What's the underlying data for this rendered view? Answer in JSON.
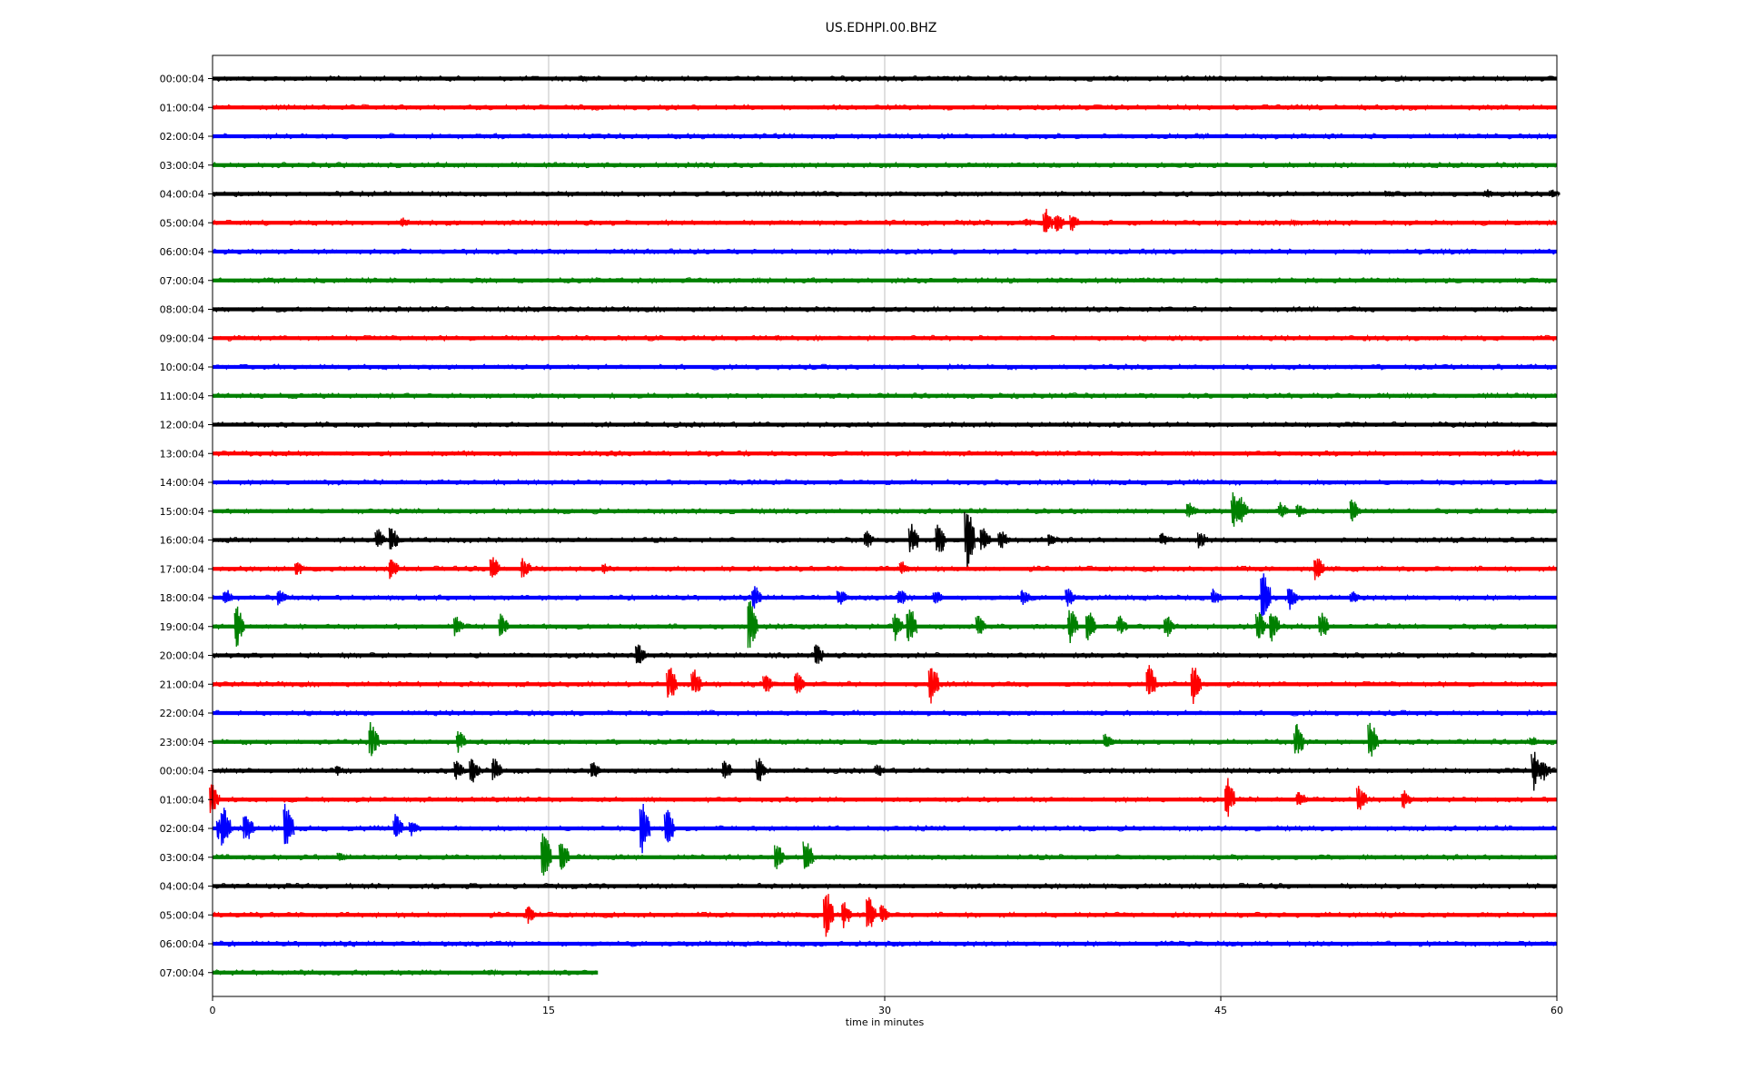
{
  "chart_data": {
    "type": "line",
    "title": "US.EDHPI.00.BHZ",
    "xlabel": "time in minutes",
    "ylabel": "",
    "xlim": [
      0,
      60
    ],
    "x_ticks": [
      0,
      15,
      30,
      45,
      60
    ],
    "grid": "vertical",
    "line_colors": [
      "#000000",
      "#ff0000",
      "#0000ff",
      "#008000"
    ],
    "rows": [
      {
        "label": "00:00:04",
        "end": 60,
        "events": [
          [
            16.6,
            4
          ]
        ]
      },
      {
        "label": "01:00:04",
        "end": 60,
        "events": []
      },
      {
        "label": "02:00:04",
        "end": 60,
        "events": [
          [
            44.3,
            3
          ]
        ]
      },
      {
        "label": "03:00:04",
        "end": 60,
        "events": []
      },
      {
        "label": "04:00:04",
        "end": 60,
        "events": [
          [
            52.5,
            4
          ],
          [
            57,
            5
          ],
          [
            59.9,
            5
          ]
        ]
      },
      {
        "label": "05:00:04",
        "end": 60,
        "events": [
          [
            8.6,
            6
          ],
          [
            36.5,
            5
          ],
          [
            37.3,
            16
          ],
          [
            37.8,
            12
          ],
          [
            38.5,
            10
          ],
          [
            48.3,
            3
          ]
        ]
      },
      {
        "label": "06:00:04",
        "end": 60,
        "events": []
      },
      {
        "label": "07:00:04",
        "end": 60,
        "events": [
          [
            24.3,
            3
          ]
        ]
      },
      {
        "label": "08:00:04",
        "end": 60,
        "events": []
      },
      {
        "label": "09:00:04",
        "end": 60,
        "events": [
          [
            25.3,
            3
          ]
        ]
      },
      {
        "label": "10:00:04",
        "end": 60,
        "events": []
      },
      {
        "label": "11:00:04",
        "end": 60,
        "events": []
      },
      {
        "label": "12:00:04",
        "end": 60,
        "events": []
      },
      {
        "label": "13:00:04",
        "end": 60,
        "events": [
          [
            58.2,
            4
          ]
        ]
      },
      {
        "label": "14:00:04",
        "end": 60,
        "events": []
      },
      {
        "label": "15:00:04",
        "end": 60,
        "events": [
          [
            43.7,
            10
          ],
          [
            45.7,
            22
          ],
          [
            46,
            16
          ],
          [
            47.8,
            10
          ],
          [
            48.6,
            8
          ],
          [
            51,
            14
          ]
        ]
      },
      {
        "label": "16:00:04",
        "end": 60,
        "events": [
          [
            7.5,
            12
          ],
          [
            8.1,
            16
          ],
          [
            29.3,
            10
          ],
          [
            31.3,
            18
          ],
          [
            32.5,
            20
          ],
          [
            33.8,
            36
          ],
          [
            34.5,
            14
          ],
          [
            35.3,
            12
          ],
          [
            37.5,
            8
          ],
          [
            42.5,
            8
          ],
          [
            44.2,
            10
          ]
        ]
      },
      {
        "label": "17:00:04",
        "end": 60,
        "events": [
          [
            3.9,
            8
          ],
          [
            8.1,
            14
          ],
          [
            12.6,
            14
          ],
          [
            14,
            12
          ],
          [
            17.6,
            6
          ],
          [
            30.9,
            8
          ],
          [
            49.4,
            14
          ]
        ]
      },
      {
        "label": "18:00:04",
        "end": 60,
        "events": [
          [
            0.7,
            10
          ],
          [
            3.1,
            10
          ],
          [
            24.3,
            14
          ],
          [
            28.1,
            10
          ],
          [
            30.8,
            10
          ],
          [
            32.4,
            10
          ],
          [
            36.3,
            10
          ],
          [
            38.3,
            10
          ],
          [
            44.8,
            10
          ],
          [
            47,
            32
          ],
          [
            48.2,
            14
          ],
          [
            51,
            8
          ]
        ]
      },
      {
        "label": "19:00:04",
        "end": 60,
        "events": [
          [
            1.2,
            24
          ],
          [
            11,
            12
          ],
          [
            13,
            14
          ],
          [
            24.1,
            34
          ],
          [
            30.6,
            16
          ],
          [
            31.2,
            24
          ],
          [
            34.3,
            12
          ],
          [
            38.4,
            20
          ],
          [
            39.2,
            18
          ],
          [
            40.6,
            12
          ],
          [
            42.7,
            14
          ],
          [
            46.8,
            16
          ],
          [
            47.4,
            20
          ],
          [
            49.6,
            18
          ]
        ]
      },
      {
        "label": "20:00:04",
        "end": 60,
        "events": [
          [
            19.1,
            14
          ],
          [
            27.1,
            12
          ]
        ]
      },
      {
        "label": "21:00:04",
        "end": 60,
        "events": [
          [
            20.5,
            22
          ],
          [
            21.6,
            16
          ],
          [
            24.8,
            12
          ],
          [
            26.2,
            16
          ],
          [
            32.2,
            28
          ],
          [
            41.9,
            22
          ],
          [
            43.9,
            24
          ]
        ]
      },
      {
        "label": "22:00:04",
        "end": 60,
        "events": []
      },
      {
        "label": "23:00:04",
        "end": 60,
        "events": [
          [
            7.2,
            22
          ],
          [
            11.1,
            14
          ],
          [
            40,
            10
          ],
          [
            48.5,
            20
          ],
          [
            51.8,
            24
          ],
          [
            59,
            6
          ]
        ]
      },
      {
        "label": "00:00:04",
        "end": 60,
        "events": [
          [
            5.7,
            6
          ],
          [
            11,
            12
          ],
          [
            11.7,
            16
          ],
          [
            12.7,
            14
          ],
          [
            17.1,
            10
          ],
          [
            23,
            12
          ],
          [
            24.5,
            14
          ],
          [
            29.8,
            8
          ],
          [
            59.1,
            22
          ],
          [
            59.5,
            12
          ]
        ]
      },
      {
        "label": "01:00:04",
        "end": 60,
        "events": [
          [
            0.1,
            18
          ],
          [
            45.4,
            24
          ],
          [
            48.6,
            10
          ],
          [
            51.3,
            16
          ],
          [
            53.3,
            10
          ]
        ]
      },
      {
        "label": "02:00:04",
        "end": 60,
        "events": [
          [
            0.4,
            12
          ],
          [
            0.6,
            24
          ],
          [
            1.6,
            18
          ],
          [
            3.4,
            28
          ],
          [
            8.3,
            16
          ],
          [
            9,
            10
          ],
          [
            19.3,
            30
          ],
          [
            20.4,
            22
          ]
        ]
      },
      {
        "label": "03:00:04",
        "end": 60,
        "events": [
          [
            5.8,
            6
          ],
          [
            14.9,
            28
          ],
          [
            15.7,
            20
          ],
          [
            25.3,
            16
          ],
          [
            26.6,
            20
          ]
        ]
      },
      {
        "label": "04:00:04",
        "end": 60,
        "events": []
      },
      {
        "label": "05:00:04",
        "end": 60,
        "events": [
          [
            14.2,
            10
          ],
          [
            27.5,
            28
          ],
          [
            28.3,
            14
          ],
          [
            29.4,
            20
          ],
          [
            30,
            12
          ]
        ]
      },
      {
        "label": "06:00:04",
        "end": 60,
        "events": []
      },
      {
        "label": "07:00:04",
        "end": 17.2,
        "events": [
          [
            12.5,
            4
          ]
        ]
      }
    ]
  }
}
